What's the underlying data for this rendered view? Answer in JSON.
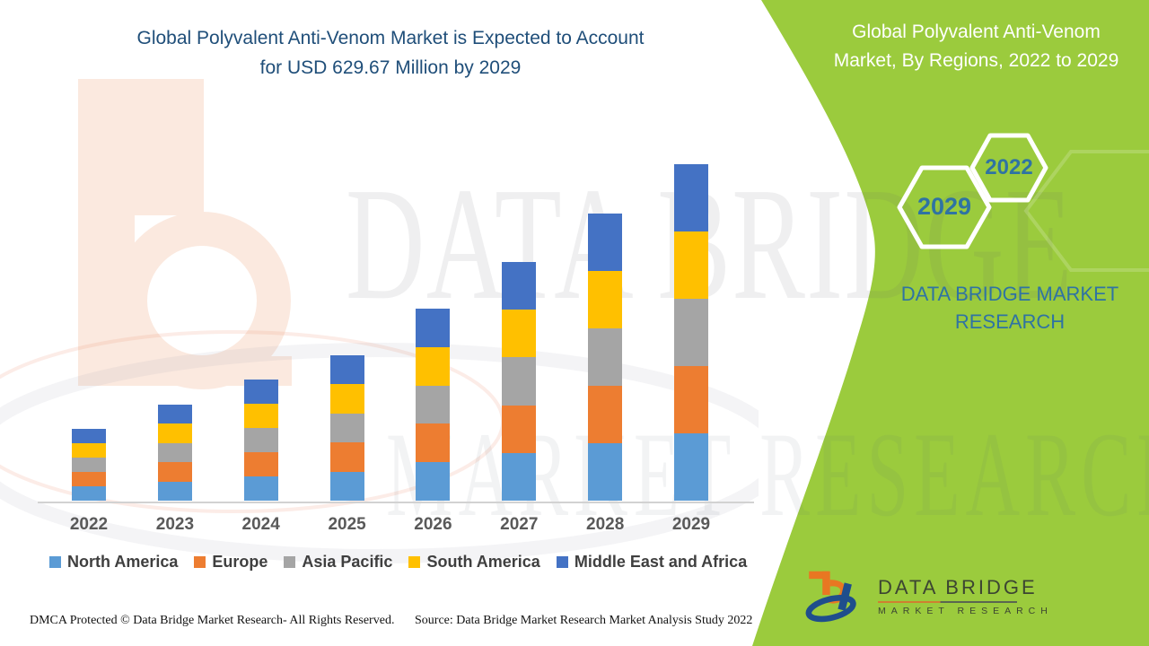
{
  "header": {
    "title_lines": [
      "Global Polyvalent Anti-Venom Market is Expected to Account",
      "for USD 629.67 Million by 2029"
    ],
    "title_color": "#1F4E79"
  },
  "side_panel": {
    "title_lines": [
      "Global Polyvalent Anti-Venom",
      "Market, By Regions, 2022 to 2029"
    ],
    "hexagons": [
      {
        "label": "2029"
      },
      {
        "label": "2022"
      }
    ],
    "brand_lines": [
      "DATA BRIDGE MARKET",
      "RESEARCH"
    ],
    "colors": {
      "background": "#9BCB3D",
      "title_text": "#FFFFFF",
      "accent_text": "#2f73a3",
      "hexagon_border": "#FFFFFF"
    }
  },
  "chart_data": {
    "type": "bar",
    "stacked": true,
    "title": "Global Polyvalent Anti-Venom Market is Expected to Account for USD 629.67 Million by 2029",
    "unit": "USD Million",
    "categories": [
      "2022",
      "2023",
      "2024",
      "2025",
      "2026",
      "2027",
      "2028",
      "2029"
    ],
    "series": [
      {
        "name": "North America",
        "color": "#5B9BD5",
        "values": [
          26.9,
          35.9,
          45.3,
          54.4,
          71.9,
          89.3,
          107.5,
          125.93
        ]
      },
      {
        "name": "Europe",
        "color": "#ED7D31",
        "values": [
          26.9,
          35.9,
          45.3,
          54.4,
          71.9,
          89.3,
          107.5,
          125.93
        ]
      },
      {
        "name": "Asia Pacific",
        "color": "#A5A5A5",
        "values": [
          26.9,
          35.9,
          45.3,
          54.4,
          71.9,
          89.3,
          107.5,
          125.93
        ]
      },
      {
        "name": "South America",
        "color": "#FFC000",
        "values": [
          26.9,
          35.9,
          45.3,
          54.4,
          71.9,
          89.3,
          107.5,
          125.93
        ]
      },
      {
        "name": "Middle East and Africa",
        "color": "#4472C4",
        "values": [
          26.9,
          35.9,
          45.3,
          54.4,
          71.9,
          89.3,
          107.5,
          125.93
        ]
      }
    ],
    "totals_usd_million": [
      134.5,
      179.5,
      226.5,
      272.0,
      359.5,
      446.5,
      537.5,
      629.67
    ],
    "highlight_value": "USD 629.67 Million by 2029",
    "ylim": [
      0,
      660
    ],
    "grid": false,
    "legend_position": "bottom"
  },
  "watermark": {
    "line1": "DATA BRIDGE",
    "line2": "MARKET RESEARCH"
  },
  "footer": {
    "left": "DMCA Protected © Data Bridge Market Research- All Rights Reserved.",
    "right": "Source: Data Bridge Market Research Market Analysis Study 2022"
  },
  "logo": {
    "title": "DATA BRIDGE",
    "subtitle": "MARKET RESEARCH"
  }
}
